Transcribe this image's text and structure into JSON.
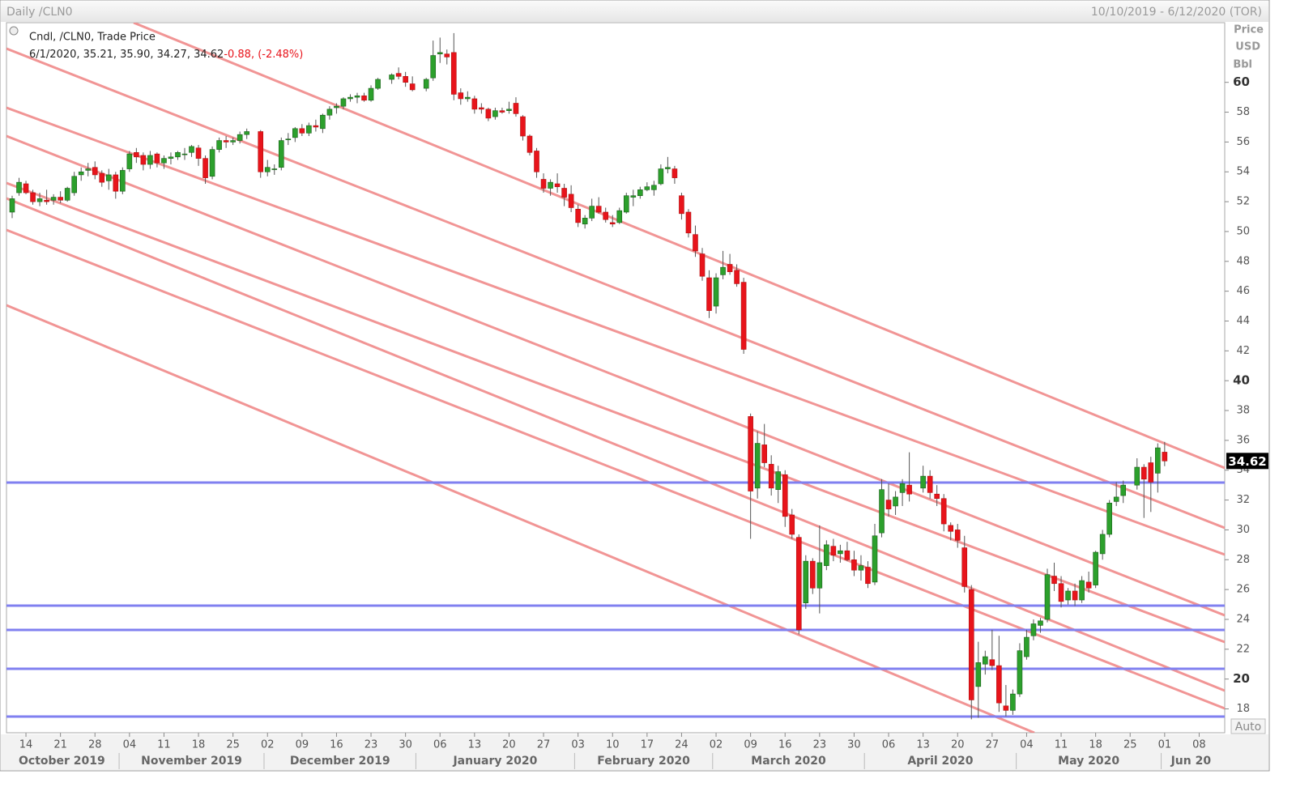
{
  "chart_data": {
    "type": "candlestick",
    "title": "Daily /CLN0",
    "date_range": "10/10/2019 - 6/12/2020 (TOR)",
    "study": "Cndl, /CLN0, Trade Price",
    "readout": "6/1/2020, 35.21, 35.90, 34.27, 34.62",
    "change": "-0.88, (-2.48%)",
    "axis_label": [
      "Price",
      "USD",
      "Bbl"
    ],
    "auto_button": "Auto",
    "colors": {
      "up": "#2ca02c",
      "down": "#e8141b",
      "wick": "#555555",
      "tag": "#000000"
    },
    "ylim": [
      16.4,
      64
    ],
    "yticks": [
      18,
      20,
      22,
      24,
      26,
      28,
      30,
      32,
      34,
      36,
      38,
      40,
      42,
      44,
      46,
      48,
      50,
      52,
      54,
      56,
      58,
      60
    ],
    "xticks": [
      {
        "value": "2019-10-14",
        "label": "14"
      },
      {
        "value": "2019-10-21",
        "label": "21"
      },
      {
        "value": "2019-10-28",
        "label": "28"
      },
      {
        "value": "2019-11-04",
        "label": "04"
      },
      {
        "value": "2019-11-11",
        "label": "11"
      },
      {
        "value": "2019-11-18",
        "label": "18"
      },
      {
        "value": "2019-11-25",
        "label": "25"
      },
      {
        "value": "2019-12-02",
        "label": "02"
      },
      {
        "value": "2019-12-09",
        "label": "09"
      },
      {
        "value": "2019-12-16",
        "label": "16"
      },
      {
        "value": "2019-12-23",
        "label": "23"
      },
      {
        "value": "2019-12-30",
        "label": "30"
      },
      {
        "value": "2020-01-06",
        "label": "06"
      },
      {
        "value": "2020-01-13",
        "label": "13"
      },
      {
        "value": "2020-01-20",
        "label": "20"
      },
      {
        "value": "2020-01-27",
        "label": "27"
      },
      {
        "value": "2020-02-03",
        "label": "03"
      },
      {
        "value": "2020-02-10",
        "label": "10"
      },
      {
        "value": "2020-02-17",
        "label": "17"
      },
      {
        "value": "2020-02-24",
        "label": "24"
      },
      {
        "value": "2020-03-02",
        "label": "02"
      },
      {
        "value": "2020-03-09",
        "label": "09"
      },
      {
        "value": "2020-03-16",
        "label": "16"
      },
      {
        "value": "2020-03-23",
        "label": "23"
      },
      {
        "value": "2020-03-30",
        "label": "30"
      },
      {
        "value": "2020-04-06",
        "label": "06"
      },
      {
        "value": "2020-04-13",
        "label": "13"
      },
      {
        "value": "2020-04-20",
        "label": "20"
      },
      {
        "value": "2020-04-27",
        "label": "27"
      },
      {
        "value": "2020-05-04",
        "label": "04"
      },
      {
        "value": "2020-05-11",
        "label": "11"
      },
      {
        "value": "2020-05-18",
        "label": "18"
      },
      {
        "value": "2020-05-25",
        "label": "25"
      },
      {
        "value": "2020-06-01",
        "label": "01"
      },
      {
        "value": "2020-06-08",
        "label": "08"
      }
    ],
    "months": [
      {
        "value": "2019-10",
        "label": "October 2019"
      },
      {
        "value": "2019-11",
        "label": "November 2019"
      },
      {
        "value": "2019-12",
        "label": "December 2019"
      },
      {
        "value": "2020-01",
        "label": "January 2020"
      },
      {
        "value": "2020-02",
        "label": "February 2020"
      },
      {
        "value": "2020-03",
        "label": "March 2020"
      },
      {
        "value": "2020-04",
        "label": "April 2020"
      },
      {
        "value": "2020-05",
        "label": "May 2020"
      },
      {
        "value": "2020-06",
        "label": "Jun 20"
      }
    ],
    "x": [
      "2019-10-10",
      "2019-10-11",
      "2019-10-14",
      "2019-10-15",
      "2019-10-16",
      "2019-10-17",
      "2019-10-18",
      "2019-10-21",
      "2019-10-22",
      "2019-10-23",
      "2019-10-24",
      "2019-10-25",
      "2019-10-28",
      "2019-10-29",
      "2019-10-30",
      "2019-10-31",
      "2019-11-01",
      "2019-11-04",
      "2019-11-05",
      "2019-11-06",
      "2019-11-07",
      "2019-11-08",
      "2019-11-11",
      "2019-11-12",
      "2019-11-13",
      "2019-11-14",
      "2019-11-15",
      "2019-11-18",
      "2019-11-19",
      "2019-11-20",
      "2019-11-21",
      "2019-11-22",
      "2019-11-25",
      "2019-11-26",
      "2019-11-27",
      "2019-11-29",
      "2019-12-02",
      "2019-12-03",
      "2019-12-04",
      "2019-12-05",
      "2019-12-06",
      "2019-12-09",
      "2019-12-10",
      "2019-12-11",
      "2019-12-12",
      "2019-12-13",
      "2019-12-16",
      "2019-12-17",
      "2019-12-18",
      "2019-12-19",
      "2019-12-20",
      "2019-12-23",
      "2019-12-24",
      "2019-12-26",
      "2019-12-27",
      "2019-12-30",
      "2019-12-31",
      "2020-01-02",
      "2020-01-03",
      "2020-01-06",
      "2020-01-07",
      "2020-01-08",
      "2020-01-09",
      "2020-01-10",
      "2020-01-13",
      "2020-01-14",
      "2020-01-15",
      "2020-01-16",
      "2020-01-17",
      "2020-01-20",
      "2020-01-21",
      "2020-01-22",
      "2020-01-23",
      "2020-01-24",
      "2020-01-27",
      "2020-01-28",
      "2020-01-29",
      "2020-01-30",
      "2020-01-31",
      "2020-02-03",
      "2020-02-04",
      "2020-02-05",
      "2020-02-06",
      "2020-02-07",
      "2020-02-10",
      "2020-02-11",
      "2020-02-12",
      "2020-02-13",
      "2020-02-14",
      "2020-02-17",
      "2020-02-18",
      "2020-02-19",
      "2020-02-20",
      "2020-02-21",
      "2020-02-24",
      "2020-02-25",
      "2020-02-26",
      "2020-02-27",
      "2020-02-28",
      "2020-03-02",
      "2020-03-03",
      "2020-03-04",
      "2020-03-05",
      "2020-03-06",
      "2020-03-09",
      "2020-03-10",
      "2020-03-11",
      "2020-03-12",
      "2020-03-13",
      "2020-03-16",
      "2020-03-17",
      "2020-03-18",
      "2020-03-19",
      "2020-03-20",
      "2020-03-23",
      "2020-03-24",
      "2020-03-25",
      "2020-03-26",
      "2020-03-27",
      "2020-03-30",
      "2020-03-31",
      "2020-04-01",
      "2020-04-02",
      "2020-04-03",
      "2020-04-06",
      "2020-04-07",
      "2020-04-08",
      "2020-04-09",
      "2020-04-13",
      "2020-04-14",
      "2020-04-15",
      "2020-04-16",
      "2020-04-17",
      "2020-04-20",
      "2020-04-21",
      "2020-04-22",
      "2020-04-23",
      "2020-04-24",
      "2020-04-27",
      "2020-04-28",
      "2020-04-29",
      "2020-04-30",
      "2020-05-01",
      "2020-05-04",
      "2020-05-05",
      "2020-05-06",
      "2020-05-07",
      "2020-05-08",
      "2020-05-11",
      "2020-05-12",
      "2020-05-13",
      "2020-05-14",
      "2020-05-15",
      "2020-05-18",
      "2020-05-19",
      "2020-05-20",
      "2020-05-21",
      "2020-05-22",
      "2020-05-26",
      "2020-05-27",
      "2020-05-28",
      "2020-05-29",
      "2020-06-01"
    ],
    "candles": [
      [
        51.3,
        52.4,
        50.9,
        52.2
      ],
      [
        52.6,
        53.6,
        52.4,
        53.3
      ],
      [
        53.2,
        53.4,
        52.5,
        52.6
      ],
      [
        52.6,
        52.8,
        51.8,
        52.0
      ],
      [
        52.0,
        52.6,
        51.7,
        52.2
      ],
      [
        52.1,
        52.8,
        51.8,
        52.0
      ],
      [
        52.1,
        52.5,
        51.8,
        52.3
      ],
      [
        52.3,
        52.7,
        51.9,
        52.1
      ],
      [
        52.1,
        53.0,
        52.0,
        52.9
      ],
      [
        52.6,
        54.0,
        52.4,
        53.7
      ],
      [
        53.8,
        54.3,
        53.4,
        54.0
      ],
      [
        54.1,
        54.6,
        53.7,
        54.2
      ],
      [
        54.3,
        54.7,
        53.5,
        53.8
      ],
      [
        53.9,
        54.1,
        53.0,
        53.3
      ],
      [
        53.4,
        54.2,
        52.8,
        53.8
      ],
      [
        53.8,
        54.0,
        52.2,
        52.7
      ],
      [
        52.7,
        54.3,
        52.5,
        54.1
      ],
      [
        54.2,
        55.4,
        54.0,
        55.2
      ],
      [
        55.3,
        55.6,
        54.6,
        55.0
      ],
      [
        55.1,
        55.3,
        54.1,
        54.5
      ],
      [
        54.5,
        55.4,
        54.2,
        55.1
      ],
      [
        55.2,
        55.3,
        54.3,
        54.6
      ],
      [
        54.6,
        55.1,
        54.2,
        54.9
      ],
      [
        54.9,
        55.3,
        54.5,
        55.0
      ],
      [
        55.0,
        55.4,
        54.8,
        55.3
      ],
      [
        55.2,
        55.6,
        54.8,
        55.2
      ],
      [
        55.3,
        55.8,
        55.0,
        55.7
      ],
      [
        55.6,
        55.8,
        54.4,
        54.9
      ],
      [
        54.9,
        55.1,
        53.2,
        53.6
      ],
      [
        53.7,
        55.7,
        53.5,
        55.5
      ],
      [
        55.5,
        56.3,
        55.3,
        56.1
      ],
      [
        56.1,
        56.4,
        55.6,
        56.0
      ],
      [
        56.0,
        56.3,
        55.8,
        56.1
      ],
      [
        56.1,
        56.7,
        55.9,
        56.5
      ],
      [
        56.5,
        56.9,
        56.2,
        56.7
      ],
      [
        56.7,
        56.8,
        53.6,
        54.0
      ],
      [
        54.0,
        54.8,
        53.7,
        54.3
      ],
      [
        54.2,
        54.5,
        53.8,
        54.2
      ],
      [
        54.3,
        56.3,
        54.1,
        56.1
      ],
      [
        56.2,
        56.6,
        55.8,
        56.2
      ],
      [
        56.3,
        57.0,
        56.0,
        56.9
      ],
      [
        56.9,
        57.2,
        56.4,
        56.6
      ],
      [
        56.6,
        57.3,
        56.4,
        57.1
      ],
      [
        57.1,
        57.5,
        56.7,
        57.0
      ],
      [
        56.9,
        57.9,
        56.6,
        57.8
      ],
      [
        57.8,
        58.4,
        57.5,
        58.2
      ],
      [
        58.3,
        58.6,
        57.9,
        58.4
      ],
      [
        58.4,
        59.0,
        58.2,
        58.9
      ],
      [
        58.9,
        59.2,
        58.7,
        59.0
      ],
      [
        59.0,
        59.3,
        58.6,
        59.1
      ],
      [
        59.1,
        59.3,
        58.7,
        58.8
      ],
      [
        58.8,
        59.8,
        58.7,
        59.6
      ],
      [
        59.6,
        60.3,
        59.5,
        60.2
      ],
      [
        60.2,
        60.6,
        59.9,
        60.5
      ],
      [
        60.6,
        61.0,
        60.2,
        60.4
      ],
      [
        60.4,
        60.7,
        59.7,
        60.0
      ],
      [
        59.9,
        60.4,
        59.4,
        59.5
      ],
      [
        59.6,
        60.3,
        59.4,
        60.2
      ],
      [
        60.3,
        62.8,
        60.1,
        61.8
      ],
      [
        61.9,
        63.0,
        61.3,
        62.0
      ],
      [
        61.9,
        62.2,
        61.2,
        61.7
      ],
      [
        62.0,
        63.3,
        58.8,
        59.2
      ],
      [
        59.3,
        59.6,
        58.5,
        58.9
      ],
      [
        58.9,
        59.4,
        58.7,
        59.0
      ],
      [
        58.9,
        59.1,
        57.9,
        58.2
      ],
      [
        58.3,
        58.6,
        57.9,
        58.2
      ],
      [
        58.2,
        58.3,
        57.4,
        57.6
      ],
      [
        57.7,
        58.3,
        57.5,
        58.1
      ],
      [
        58.1,
        58.3,
        57.9,
        58.0
      ],
      [
        58.1,
        58.7,
        57.9,
        58.2
      ],
      [
        58.6,
        59.0,
        57.7,
        57.9
      ],
      [
        57.7,
        57.8,
        56.1,
        56.4
      ],
      [
        56.4,
        56.5,
        55.1,
        55.3
      ],
      [
        55.4,
        55.6,
        53.6,
        54.0
      ],
      [
        53.5,
        53.9,
        52.6,
        52.9
      ],
      [
        52.9,
        53.5,
        52.4,
        53.3
      ],
      [
        53.2,
        53.9,
        52.6,
        53.0
      ],
      [
        52.9,
        53.2,
        51.7,
        52.3
      ],
      [
        52.5,
        53.1,
        51.3,
        51.6
      ],
      [
        51.5,
        51.8,
        50.3,
        50.6
      ],
      [
        50.5,
        51.1,
        50.2,
        50.9
      ],
      [
        50.9,
        52.2,
        50.7,
        51.7
      ],
      [
        51.7,
        52.3,
        51.2,
        51.3
      ],
      [
        51.3,
        51.6,
        50.6,
        50.8
      ],
      [
        50.6,
        51.1,
        50.3,
        50.5
      ],
      [
        50.6,
        51.6,
        50.5,
        51.4
      ],
      [
        51.3,
        52.6,
        51.2,
        52.4
      ],
      [
        52.3,
        52.8,
        51.7,
        52.4
      ],
      [
        52.4,
        53.0,
        52.2,
        52.8
      ],
      [
        52.8,
        53.3,
        52.7,
        53.0
      ],
      [
        52.8,
        53.4,
        52.4,
        53.1
      ],
      [
        53.2,
        54.5,
        53.1,
        54.2
      ],
      [
        54.2,
        55.0,
        53.9,
        54.3
      ],
      [
        54.2,
        54.4,
        53.2,
        53.6
      ],
      [
        52.4,
        52.6,
        50.8,
        51.2
      ],
      [
        51.3,
        51.5,
        49.6,
        49.9
      ],
      [
        49.8,
        50.4,
        48.3,
        48.7
      ],
      [
        48.5,
        48.9,
        46.7,
        47.0
      ],
      [
        46.9,
        47.4,
        44.2,
        44.7
      ],
      [
        45.0,
        47.2,
        44.5,
        46.9
      ],
      [
        47.1,
        48.7,
        46.8,
        47.6
      ],
      [
        47.8,
        48.5,
        47.1,
        47.3
      ],
      [
        47.4,
        47.8,
        46.3,
        46.5
      ],
      [
        46.6,
        46.9,
        41.8,
        42.1
      ],
      [
        37.6,
        37.8,
        29.4,
        32.6
      ],
      [
        32.8,
        36.6,
        32.1,
        35.8
      ],
      [
        35.7,
        37.1,
        34.2,
        34.5
      ],
      [
        34.4,
        35.0,
        32.3,
        32.8
      ],
      [
        32.7,
        34.3,
        31.8,
        33.9
      ],
      [
        33.7,
        34.0,
        30.2,
        30.9
      ],
      [
        31.0,
        31.4,
        29.4,
        29.7
      ],
      [
        29.5,
        29.7,
        23.0,
        23.3
      ],
      [
        25.1,
        28.3,
        24.7,
        27.9
      ],
      [
        27.9,
        28.1,
        25.7,
        26.1
      ],
      [
        26.1,
        30.3,
        24.4,
        27.8
      ],
      [
        27.6,
        29.3,
        27.3,
        29.0
      ],
      [
        28.9,
        29.4,
        27.9,
        28.3
      ],
      [
        28.4,
        29.0,
        27.8,
        28.6
      ],
      [
        28.6,
        29.2,
        27.9,
        28.0
      ],
      [
        28.0,
        28.6,
        26.9,
        27.3
      ],
      [
        27.3,
        28.3,
        26.6,
        27.6
      ],
      [
        27.5,
        27.9,
        26.1,
        26.4
      ],
      [
        26.5,
        30.4,
        26.3,
        29.6
      ],
      [
        29.8,
        33.4,
        29.5,
        32.7
      ],
      [
        32.0,
        33.1,
        30.9,
        31.4
      ],
      [
        31.6,
        32.6,
        31.0,
        32.2
      ],
      [
        32.5,
        33.4,
        31.6,
        33.1
      ],
      [
        33.0,
        35.2,
        31.9,
        32.4
      ],
      [
        32.8,
        34.3,
        32.5,
        33.6
      ],
      [
        33.6,
        34.0,
        32.1,
        32.5
      ],
      [
        32.4,
        33.0,
        31.6,
        32.1
      ],
      [
        32.1,
        32.4,
        29.9,
        30.4
      ],
      [
        30.3,
        30.5,
        29.3,
        29.9
      ],
      [
        30.0,
        30.4,
        28.8,
        29.3
      ],
      [
        28.8,
        29.6,
        25.8,
        26.2
      ],
      [
        26.0,
        26.3,
        17.3,
        18.6
      ],
      [
        19.5,
        22.5,
        17.4,
        21.1
      ],
      [
        21.0,
        21.9,
        20.3,
        21.5
      ],
      [
        21.3,
        23.3,
        20.6,
        20.9
      ],
      [
        20.9,
        22.9,
        17.8,
        18.4
      ],
      [
        18.2,
        19.6,
        17.5,
        17.9
      ],
      [
        17.9,
        19.3,
        17.6,
        19.0
      ],
      [
        19.0,
        22.4,
        18.8,
        21.9
      ],
      [
        21.5,
        23.3,
        21.3,
        22.8
      ],
      [
        22.9,
        24.0,
        22.6,
        23.7
      ],
      [
        23.6,
        24.1,
        23.1,
        23.9
      ],
      [
        24.0,
        27.4,
        23.8,
        27.0
      ],
      [
        26.9,
        27.8,
        25.9,
        26.4
      ],
      [
        26.4,
        26.9,
        24.8,
        25.2
      ],
      [
        25.3,
        26.1,
        25.0,
        25.9
      ],
      [
        25.9,
        26.4,
        24.9,
        25.3
      ],
      [
        25.3,
        26.9,
        25.1,
        26.6
      ],
      [
        26.5,
        27.2,
        25.8,
        26.1
      ],
      [
        26.3,
        28.6,
        26.1,
        28.5
      ],
      [
        28.4,
        30.0,
        28.0,
        29.7
      ],
      [
        29.7,
        32.0,
        29.5,
        31.8
      ],
      [
        31.9,
        33.2,
        31.6,
        32.2
      ],
      [
        32.3,
        33.3,
        31.8,
        33.0
      ],
      [
        33.0,
        34.8,
        32.7,
        34.2
      ],
      [
        34.2,
        34.4,
        30.8,
        33.4
      ],
      [
        34.5,
        34.9,
        31.2,
        33.2
      ],
      [
        33.8,
        35.8,
        32.5,
        35.5
      ],
      [
        35.21,
        35.9,
        34.27,
        34.62
      ]
    ]
  }
}
